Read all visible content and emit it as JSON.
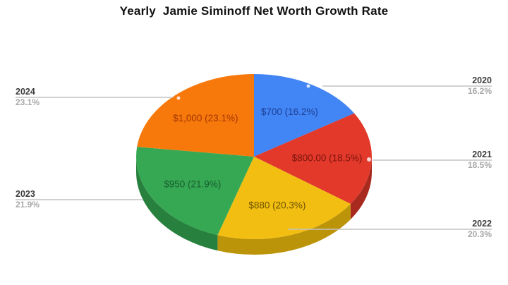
{
  "title": "Yearly  Jamie Siminoff Net Worth Growth Rate",
  "chart_data": {
    "type": "pie",
    "is_3d": true,
    "title": "Yearly  Jamie Siminoff Net Worth Growth Rate",
    "legend_position": "none",
    "start_angle_deg": 0,
    "direction": "clockwise",
    "slices": [
      {
        "year": "2020",
        "value": 700,
        "value_label": "$700",
        "pct": 16.2,
        "pct_label": "16.2%",
        "inner_label": "$700 (16.2%)",
        "color": "#4285F4",
        "side_color": "#2E5FB0",
        "text_color": "#1C3F94"
      },
      {
        "year": "2021",
        "value": 800,
        "value_label": "$800.00",
        "pct": 18.5,
        "pct_label": "18.5%",
        "inner_label": "$800.00 (18.5%)",
        "color": "#E2392B",
        "side_color": "#A82A1F",
        "text_color": "#7B150B"
      },
      {
        "year": "2022",
        "value": 880,
        "value_label": "$880",
        "pct": 20.3,
        "pct_label": "20.3%",
        "inner_label": "$880 (20.3%)",
        "color": "#F2BE11",
        "side_color": "#BC9409",
        "text_color": "#6E5300"
      },
      {
        "year": "2023",
        "value": 950,
        "value_label": "$950",
        "pct": 21.9,
        "pct_label": "21.9%",
        "inner_label": "$950 (21.9%)",
        "color": "#36A853",
        "side_color": "#27803D",
        "text_color": "#175D2C"
      },
      {
        "year": "2024",
        "value": 1000,
        "value_label": "$1,000",
        "pct": 23.1,
        "pct_label": "23.1%",
        "inner_label": "$1,000 (23.1%)",
        "color": "#F8790B",
        "side_color": "#C05E08",
        "text_color": "#A03400"
      }
    ]
  }
}
